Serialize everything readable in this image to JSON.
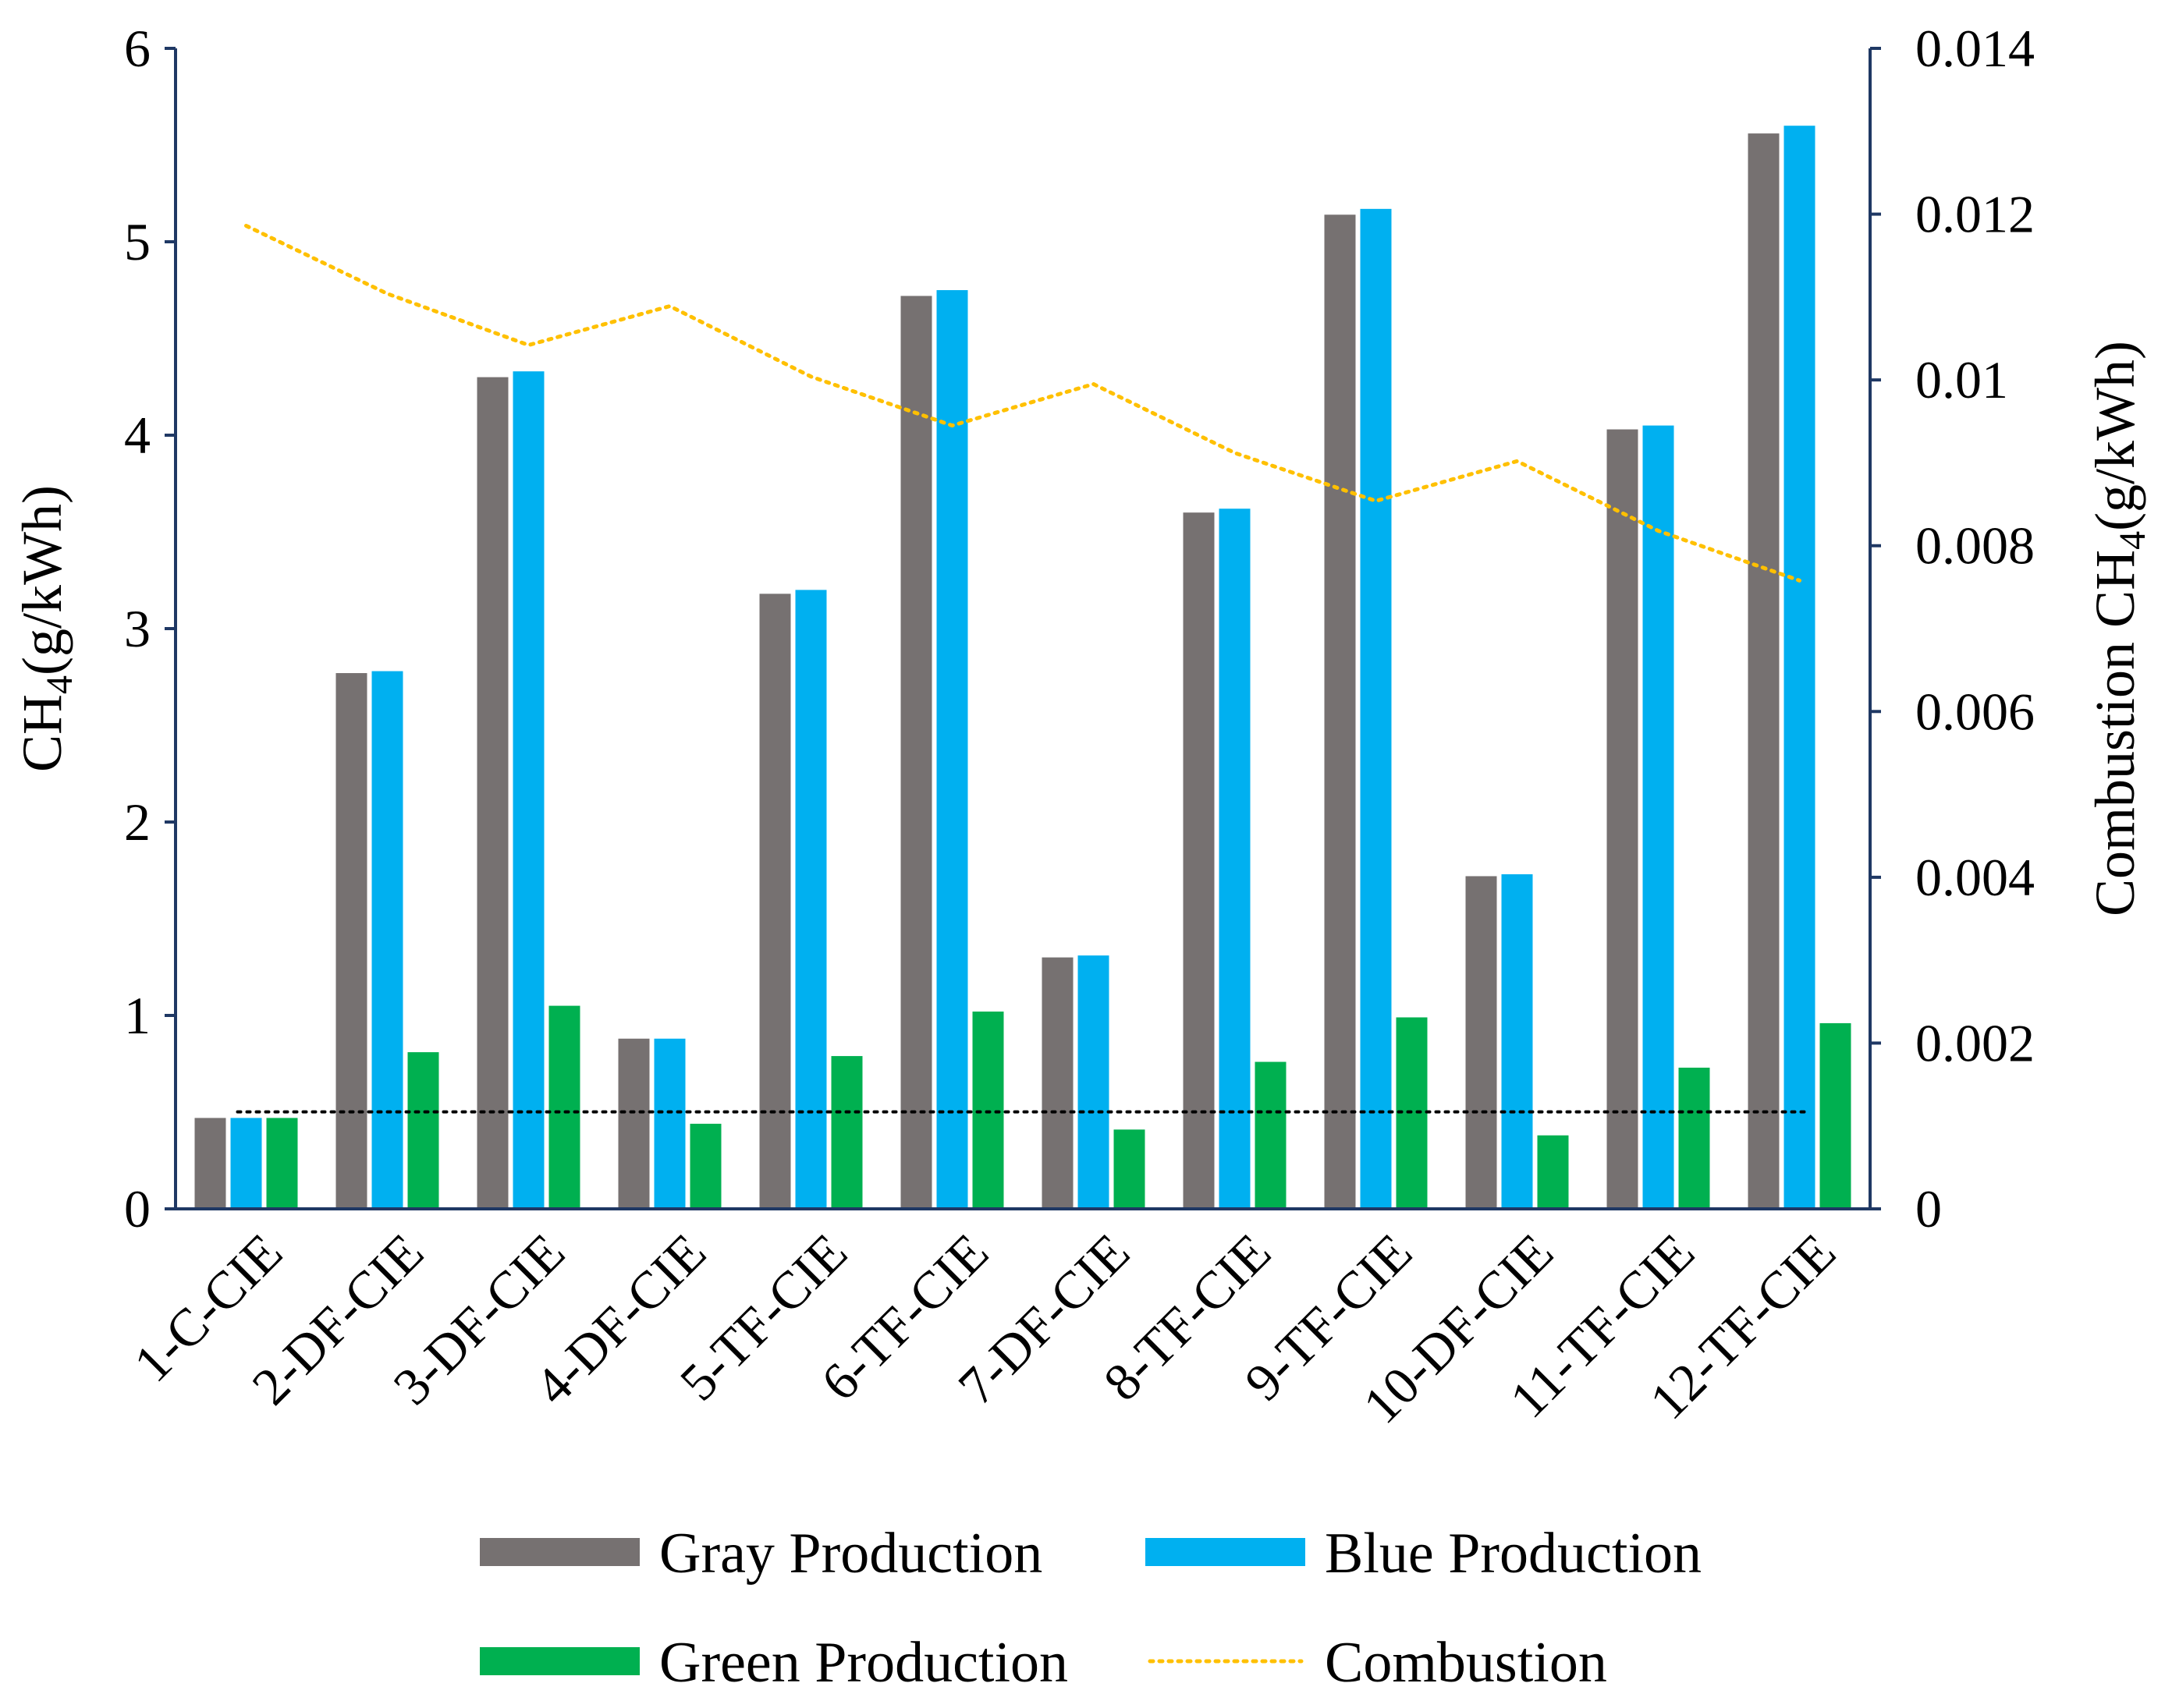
{
  "chart_data": {
    "type": "bar",
    "title": "",
    "categories": [
      "1-C-CIE",
      "2-DF-CIE",
      "3-DF-CIE",
      "4-DF-CIE",
      "5-TF-CIE",
      "6-TF-CIE",
      "7-DF-CIE",
      "8-TF-CIE",
      "9-TF-CIE",
      "10-DF-CIE",
      "11-TF-CIE",
      "12-TF-CIE"
    ],
    "series": [
      {
        "name": "Gray Production",
        "axis": "left",
        "kind": "bar",
        "color": "#767171",
        "values": [
          0.47,
          2.77,
          4.3,
          0.88,
          3.18,
          4.72,
          1.3,
          3.6,
          5.14,
          1.72,
          4.03,
          5.56
        ]
      },
      {
        "name": "Blue Production",
        "axis": "left",
        "kind": "bar",
        "color": "#00B0F0",
        "values": [
          0.47,
          2.78,
          4.33,
          0.88,
          3.2,
          4.75,
          1.31,
          3.62,
          5.17,
          1.73,
          4.05,
          5.6
        ]
      },
      {
        "name": "Green Production",
        "axis": "left",
        "kind": "bar",
        "color": "#00B050",
        "values": [
          0.47,
          0.81,
          1.05,
          0.44,
          0.79,
          1.02,
          0.41,
          0.76,
          0.99,
          0.38,
          0.73,
          0.96
        ]
      },
      {
        "name": "Combustion",
        "axis": "right",
        "kind": "line",
        "style": "dotted",
        "color": "#FFC000",
        "values": [
          0.01186,
          0.01104,
          0.01042,
          0.01089,
          0.01004,
          0.00945,
          0.00995,
          0.00912,
          0.00854,
          0.00902,
          0.00818,
          0.00758
        ]
      }
    ],
    "reference_line": {
      "axis": "right",
      "value": 0.00117,
      "style": "dotted",
      "color": "#000000"
    },
    "ylabel_left": {
      "main": "CH",
      "sub": "4",
      "rest": "(g/kWh)"
    },
    "ylabel_right": {
      "pre": "Combustion CH",
      "sub": "4",
      "rest": "(g/kWh)"
    },
    "ylim_left": [
      0,
      6
    ],
    "ylim_right": [
      0,
      0.014
    ],
    "yticks_left": [
      "0",
      "1",
      "2",
      "3",
      "4",
      "5",
      "6"
    ],
    "yticks_right": [
      "0",
      "0.002",
      "0.004",
      "0.006",
      "0.008",
      "0.01",
      "0.012",
      "0.014"
    ],
    "grid": false,
    "legend": {
      "position": "bottom",
      "entries": [
        "Gray Production",
        "Blue Production",
        "Green Production",
        "Combustion"
      ]
    }
  }
}
